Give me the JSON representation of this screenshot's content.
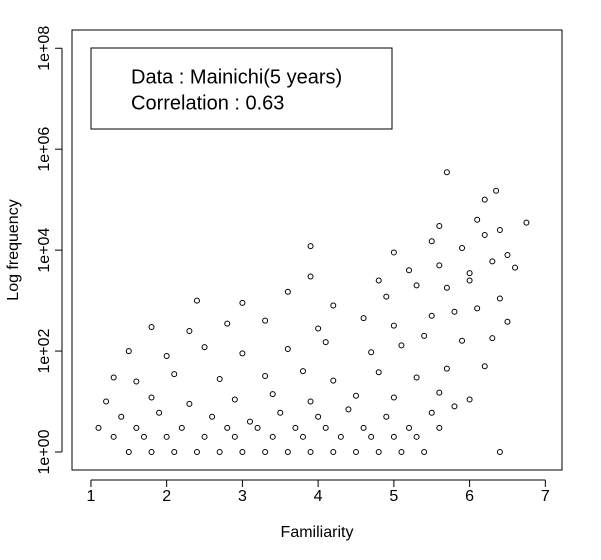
{
  "chart_data": {
    "type": "scatter",
    "xlabel": "Familiarity",
    "ylabel": "Log frequency",
    "annotations": [
      "Data : Mainichi(5 years)",
      "Correlation : 0.63"
    ],
    "color": "#000000",
    "log_y": true,
    "xlim": [
      0.75,
      7.22
    ],
    "ylim": [
      0.44,
      230000000
    ],
    "xticks": [
      1,
      2,
      3,
      4,
      5,
      6,
      7
    ],
    "yticks": [
      {
        "value": 1,
        "label": "1e+00"
      },
      {
        "value": 100,
        "label": "1e+02"
      },
      {
        "value": 10000,
        "label": "1e+04"
      },
      {
        "value": 1000000,
        "label": "1e+06"
      },
      {
        "value": 100000000,
        "label": "1e+08"
      }
    ],
    "x": [
      1.5,
      1.8,
      2.1,
      2.4,
      2.7,
      3.0,
      3.3,
      3.6,
      3.9,
      4.2,
      4.5,
      4.8,
      5.1,
      5.4,
      6.4,
      1.3,
      1.7,
      2.0,
      2.5,
      2.9,
      3.4,
      3.8,
      4.3,
      4.7,
      5.0,
      5.3,
      1.1,
      1.6,
      2.2,
      2.8,
      3.2,
      3.7,
      4.1,
      4.6,
      5.2,
      5.6,
      1.4,
      1.9,
      2.6,
      3.1,
      3.5,
      4.0,
      4.4,
      4.9,
      5.5,
      5.8,
      1.2,
      1.8,
      2.3,
      2.9,
      3.4,
      3.9,
      4.5,
      5.0,
      5.6,
      6.0,
      1.3,
      1.6,
      2.1,
      2.7,
      3.3,
      3.8,
      4.2,
      4.8,
      5.3,
      5.7,
      6.2,
      1.5,
      2.0,
      2.5,
      3.0,
      3.6,
      4.1,
      4.7,
      5.1,
      5.4,
      5.9,
      6.3,
      1.8,
      2.3,
      2.8,
      3.3,
      4.0,
      4.6,
      5.0,
      5.5,
      5.8,
      6.1,
      6.5,
      2.4,
      3.0,
      3.6,
      4.2,
      4.9,
      5.3,
      5.7,
      6.0,
      6.4,
      3.9,
      4.8,
      5.2,
      5.6,
      6.0,
      6.3,
      6.6,
      3.9,
      5.0,
      5.5,
      5.9,
      6.2,
      6.5,
      5.6,
      6.1,
      6.4,
      6.75,
      6.2,
      6.35,
      5.7
    ],
    "values": [
      1,
      1,
      1,
      1,
      1,
      1,
      1,
      1,
      1,
      1,
      1,
      1,
      1,
      1,
      1,
      2,
      2,
      2,
      2,
      2,
      2,
      2,
      2,
      2,
      2,
      2,
      3,
      3,
      3,
      3,
      3,
      3,
      3,
      3,
      3,
      3,
      5,
      6,
      5,
      4,
      6,
      5,
      7,
      5,
      6,
      8,
      10,
      12,
      9,
      11,
      14,
      10,
      13,
      12,
      15,
      11,
      30,
      25,
      35,
      28,
      32,
      40,
      26,
      38,
      30,
      45,
      50,
      100,
      80,
      120,
      90,
      110,
      150,
      95,
      130,
      200,
      160,
      180,
      300,
      250,
      350,
      400,
      280,
      450,
      320,
      500,
      600,
      700,
      380,
      1000,
      900,
      1500,
      800,
      1200,
      2000,
      1800,
      2500,
      1100,
      3000,
      2500,
      4000,
      5000,
      3500,
      6000,
      4500,
      12000,
      9000,
      15000,
      11000,
      20000,
      8000,
      30000,
      40000,
      25000,
      35000,
      100000,
      150000,
      350000
    ]
  }
}
